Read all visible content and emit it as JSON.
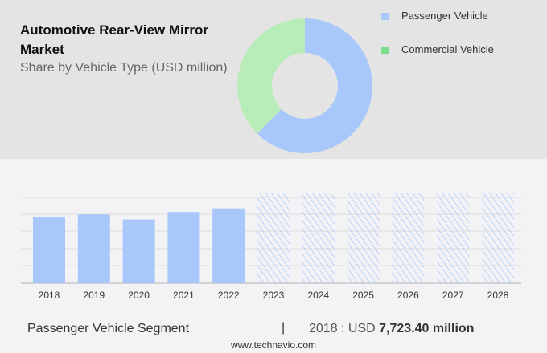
{
  "header": {
    "title": "Automotive Rear-View Mirror Market",
    "subtitle": "Share by Vehicle Type (USD million)"
  },
  "colors": {
    "passenger": "#a8c8fc",
    "commercial": "#b8ecb8",
    "commercial_legend": "#7ddc8e"
  },
  "chart_data": [
    {
      "type": "pie",
      "subtype": "donut",
      "title": "Share by Vehicle Type (USD million)",
      "legend": "top-right",
      "labels": [
        "Passenger Vehicle",
        "Commercial Vehicle"
      ],
      "values": [
        62.5,
        37.5
      ]
    },
    {
      "type": "bar",
      "title": "Passenger Vehicle Segment",
      "categories": [
        "2018",
        "2019",
        "2020",
        "2021",
        "2022",
        "2023",
        "2024",
        "2025",
        "2026",
        "2027",
        "2028"
      ],
      "values": [
        7723.4,
        8030,
        7444,
        8328,
        8746,
        null,
        null,
        null,
        null,
        null,
        null
      ],
      "forecast": [
        false,
        false,
        false,
        false,
        false,
        true,
        true,
        true,
        true,
        true,
        true
      ],
      "ylim": [
        0,
        10500
      ],
      "grid": true,
      "xlabel": "",
      "ylabel": ""
    }
  ],
  "footer": {
    "segment": "Passenger Vehicle Segment",
    "separator": "|",
    "year_label": "2018 : USD ",
    "value": "7,723.40 million",
    "site": "www.technavio.com"
  }
}
